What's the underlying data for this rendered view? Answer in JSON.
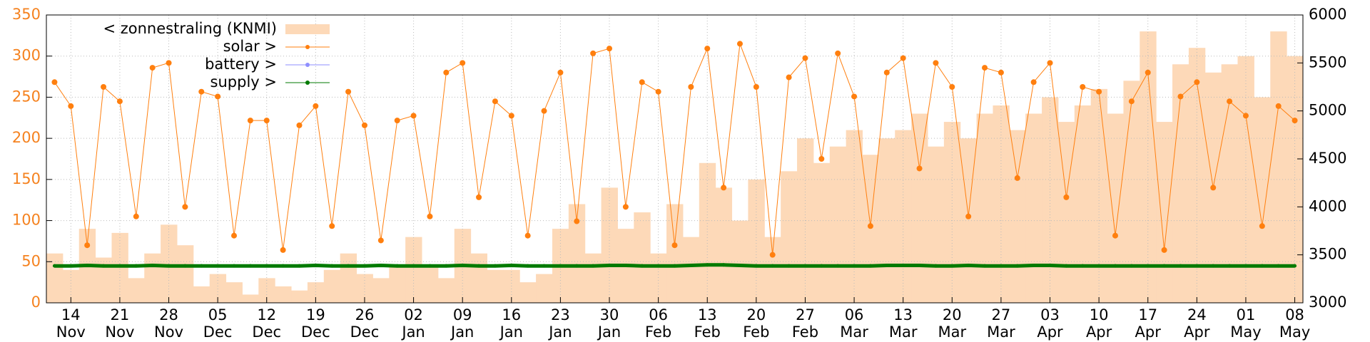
{
  "chart_data": {
    "type": "combo",
    "categories": [
      null,
      "14\nNov",
      null,
      null,
      "21\nNov",
      null,
      null,
      "28\nNov",
      null,
      null,
      "05\nDec",
      null,
      null,
      "12\nDec",
      null,
      null,
      "19\nDec",
      null,
      null,
      "26\nDec",
      null,
      null,
      "02\nJan",
      null,
      null,
      "09\nJan",
      null,
      null,
      "16\nJan",
      null,
      null,
      "23\nJan",
      null,
      null,
      "30\nJan",
      null,
      null,
      "06\nFeb",
      null,
      null,
      "13\nFeb",
      null,
      null,
      "20\nFeb",
      null,
      null,
      "27\nFeb",
      null,
      null,
      "06\nMar",
      null,
      null,
      "13\nMar",
      null,
      null,
      "20\nMar",
      null,
      null,
      "27\nMar",
      null,
      null,
      "03\nApr",
      null,
      null,
      "10\nApr",
      null,
      null,
      "17\nApr",
      null,
      null,
      "24\nApr",
      null,
      null,
      "01\nMay",
      null,
      null,
      "08\nMay"
    ],
    "series": [
      {
        "name": "< zonnestraling (KNMI)",
        "type": "bar",
        "axis": "y",
        "color": "#fdd9b8",
        "values": [
          60,
          40,
          90,
          55,
          85,
          30,
          60,
          95,
          70,
          20,
          35,
          25,
          10,
          30,
          20,
          15,
          25,
          40,
          60,
          35,
          30,
          45,
          80,
          45,
          30,
          90,
          60,
          40,
          40,
          25,
          35,
          90,
          120,
          60,
          140,
          90,
          110,
          60,
          120,
          80,
          170,
          140,
          100,
          150,
          80,
          160,
          200,
          170,
          190,
          210,
          180,
          200,
          210,
          230,
          190,
          220,
          200,
          230,
          240,
          210,
          230,
          250,
          220,
          240,
          260,
          230,
          270,
          330,
          220,
          290,
          310,
          280,
          290,
          300,
          250,
          330,
          300
        ]
      },
      {
        "name": "solar >",
        "type": "line",
        "axis": "y2",
        "color": "#ff7f0e",
        "values": [
          5300,
          5050,
          3600,
          5250,
          5100,
          3900,
          5450,
          5500,
          4000,
          5200,
          5150,
          3700,
          4900,
          4900,
          3550,
          4850,
          5050,
          3800,
          5200,
          4850,
          3650,
          4900,
          4950,
          3900,
          5400,
          5500,
          4100,
          5100,
          4950,
          3700,
          5000,
          5400,
          3850,
          5600,
          5650,
          4000,
          5300,
          5200,
          3600,
          5250,
          5650,
          4200,
          5700,
          5250,
          3500,
          5350,
          5550,
          4500,
          5600,
          5150,
          3800,
          5400,
          5550,
          4400,
          5500,
          5250,
          3900,
          5450,
          5400,
          4300,
          5300,
          5500,
          4100,
          5250,
          5200,
          3700,
          5100,
          5400,
          3550,
          5150,
          5300,
          4200,
          5100,
          4950,
          3800,
          5050,
          4900
        ]
      },
      {
        "name": "battery >",
        "type": "line",
        "axis": "y2",
        "color": "#8f8fff",
        "values": [
          null,
          null,
          null,
          null,
          null,
          null,
          null,
          null,
          null,
          null,
          null,
          null,
          null,
          null,
          null,
          null,
          null,
          null,
          null,
          null,
          null,
          null,
          null,
          null,
          null,
          null,
          null,
          null,
          null,
          null,
          null,
          null,
          null,
          null,
          null,
          null,
          null,
          null,
          null,
          null,
          null,
          null,
          null,
          null,
          null,
          null,
          null,
          null,
          null,
          null,
          null,
          null,
          null,
          null,
          null,
          null,
          null,
          null,
          null,
          null,
          null,
          null,
          null,
          null,
          null,
          null,
          null,
          null,
          null,
          null,
          null,
          null,
          null,
          null,
          null,
          null,
          null
        ]
      },
      {
        "name": "supply >",
        "type": "line",
        "axis": "y2",
        "color": "#007a00",
        "values": [
          3385,
          3385,
          3390,
          3385,
          3385,
          3385,
          3390,
          3385,
          3385,
          3385,
          3385,
          3385,
          3385,
          3385,
          3385,
          3385,
          3390,
          3385,
          3385,
          3385,
          3390,
          3385,
          3385,
          3385,
          3385,
          3390,
          3385,
          3385,
          3390,
          3385,
          3385,
          3385,
          3385,
          3385,
          3390,
          3390,
          3385,
          3385,
          3385,
          3390,
          3395,
          3395,
          3390,
          3385,
          3385,
          3385,
          3385,
          3385,
          3385,
          3385,
          3385,
          3390,
          3390,
          3390,
          3385,
          3385,
          3390,
          3385,
          3385,
          3385,
          3390,
          3390,
          3385,
          3385,
          3385,
          3385,
          3385,
          3385,
          3385,
          3385,
          3385,
          3385,
          3385,
          3385,
          3385,
          3385,
          3385
        ]
      }
    ],
    "ylim": [
      0,
      350
    ],
    "yticks": [
      0,
      50,
      100,
      150,
      200,
      250,
      300,
      350
    ],
    "y2lim": [
      3000,
      6000
    ],
    "y2ticks": [
      3000,
      3500,
      4000,
      4500,
      5000,
      5500,
      6000
    ],
    "grid": true
  }
}
